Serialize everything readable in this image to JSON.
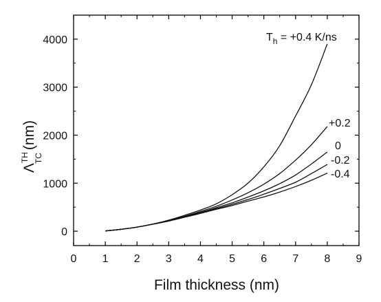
{
  "chart_data": {
    "type": "line",
    "xlabel": "Film thickness (nm)",
    "ylabel": {
      "base": "Λ",
      "superscript": "TH",
      "subscript": "TC",
      "unit": "(nm)"
    },
    "xlim": [
      0,
      9
    ],
    "ylim": [
      -300,
      4500
    ],
    "x_ticks": [
      "0",
      "1",
      "2",
      "3",
      "4",
      "5",
      "6",
      "7",
      "8",
      "9"
    ],
    "y_ticks": [
      "0",
      "1000",
      "2000",
      "3000",
      "4000"
    ],
    "grid": false,
    "x": [
      1,
      1.5,
      2,
      2.5,
      3,
      3.5,
      4,
      4.5,
      5,
      5.5,
      6,
      6.5,
      7,
      7.5,
      8
    ],
    "series": [
      {
        "label_main": "T",
        "label_sub": "h",
        "label_tail": " = +0.4 K/ns",
        "values": [
          5,
          40,
          85,
          150,
          230,
          330,
          440,
          570,
          760,
          1000,
          1340,
          1780,
          2400,
          3050,
          3900
        ]
      },
      {
        "label": "+0.2",
        "values": [
          5,
          40,
          85,
          145,
          220,
          310,
          410,
          520,
          650,
          800,
          980,
          1200,
          1480,
          1800,
          2180
        ]
      },
      {
        "label": "0",
        "values": [
          5,
          40,
          85,
          145,
          215,
          300,
          390,
          490,
          590,
          710,
          840,
          990,
          1170,
          1400,
          1650
        ]
      },
      {
        "label": "-0.2",
        "values": [
          5,
          40,
          85,
          145,
          215,
          295,
          380,
          470,
          560,
          660,
          770,
          890,
          1020,
          1200,
          1390
        ]
      },
      {
        "label": "-0.4",
        "values": [
          5,
          40,
          85,
          145,
          210,
          290,
          370,
          455,
          535,
          625,
          715,
          815,
          930,
          1060,
          1210
        ]
      }
    ]
  }
}
